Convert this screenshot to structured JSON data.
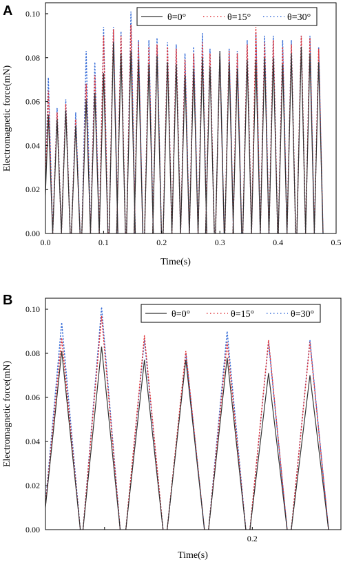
{
  "chart_data": [
    {
      "panel_label": "A",
      "type": "line",
      "xlabel": "Time(s)",
      "ylabel": "Electromagnetic force(mN)",
      "xlim": [
        0.0,
        0.5
      ],
      "ylim": [
        0.0,
        0.105
      ],
      "xticks": [
        "0.0",
        "0.1",
        "0.2",
        "0.3",
        "0.4",
        "0.5"
      ],
      "yticks": [
        "0.00",
        "0.02",
        "0.04",
        "0.06",
        "0.08",
        "0.10"
      ],
      "legend_position": "top-right",
      "peak_times": [
        0.005,
        0.02,
        0.035,
        0.052,
        0.07,
        0.085,
        0.1,
        0.117,
        0.13,
        0.147,
        0.16,
        0.178,
        0.192,
        0.21,
        0.225,
        0.24,
        0.255,
        0.27,
        0.283,
        0.3,
        0.316,
        0.33,
        0.347,
        0.362,
        0.377,
        0.392,
        0.408,
        0.423,
        0.44,
        0.455,
        0.47
      ],
      "series": [
        {
          "name": "θ=0°",
          "color": "#333333",
          "dash": "solid",
          "peaks": [
            0.054,
            0.052,
            0.056,
            0.049,
            0.061,
            0.064,
            0.073,
            0.087,
            0.082,
            0.083,
            0.079,
            0.077,
            0.081,
            0.078,
            0.077,
            0.072,
            0.075,
            0.08,
            0.076,
            0.083,
            0.078,
            0.075,
            0.079,
            0.079,
            0.08,
            0.08,
            0.077,
            0.082,
            0.085,
            0.082,
            0.078
          ]
        },
        {
          "name": "θ=15°",
          "color": "#e0363b",
          "dash": "dot",
          "peaks": [
            0.065,
            0.055,
            0.059,
            0.052,
            0.068,
            0.072,
            0.09,
            0.093,
            0.09,
            0.095,
            0.087,
            0.085,
            0.086,
            0.085,
            0.084,
            0.079,
            0.082,
            0.087,
            0.082,
            0.082,
            0.083,
            0.082,
            0.086,
            0.094,
            0.087,
            0.088,
            0.085,
            0.086,
            0.09,
            0.089,
            0.084
          ]
        },
        {
          "name": "θ=30°",
          "color": "#3a6fd8",
          "dash": "dot",
          "peaks": [
            0.071,
            0.057,
            0.061,
            0.055,
            0.083,
            0.078,
            0.094,
            0.094,
            0.092,
            0.101,
            0.088,
            0.088,
            0.089,
            0.087,
            0.086,
            0.082,
            0.085,
            0.091,
            0.084,
            0.083,
            0.084,
            0.083,
            0.088,
            0.091,
            0.09,
            0.09,
            0.088,
            0.088,
            0.09,
            0.09,
            0.085
          ]
        }
      ]
    },
    {
      "panel_label": "B",
      "type": "line",
      "xlabel": "Time(s)",
      "ylabel": "Electromagnetic force(mN)",
      "xlim": [
        0.13,
        0.23
      ],
      "ylim": [
        0.0,
        0.105
      ],
      "xticks": [
        "0.2"
      ],
      "yticks": [
        "0.00",
        "0.02",
        "0.04",
        "0.06",
        "0.08",
        "0.10"
      ],
      "legend_position": "top-right",
      "peak_times": [
        0.1355,
        0.149,
        0.1635,
        0.1775,
        0.1915,
        0.2055,
        0.2195
      ],
      "series": [
        {
          "name": "θ=0°",
          "color": "#333333",
          "dash": "solid",
          "peaks": [
            0.081,
            0.083,
            0.077,
            0.077,
            0.078,
            0.071,
            0.07
          ]
        },
        {
          "name": "θ=15°",
          "color": "#e0363b",
          "dash": "dot",
          "peaks": [
            0.087,
            0.097,
            0.088,
            0.081,
            0.085,
            0.086,
            0.085
          ]
        },
        {
          "name": "θ=30°",
          "color": "#3a6fd8",
          "dash": "dot",
          "peaks": [
            0.094,
            0.101,
            0.086,
            0.08,
            0.09,
            0.085,
            0.086
          ]
        }
      ]
    }
  ]
}
